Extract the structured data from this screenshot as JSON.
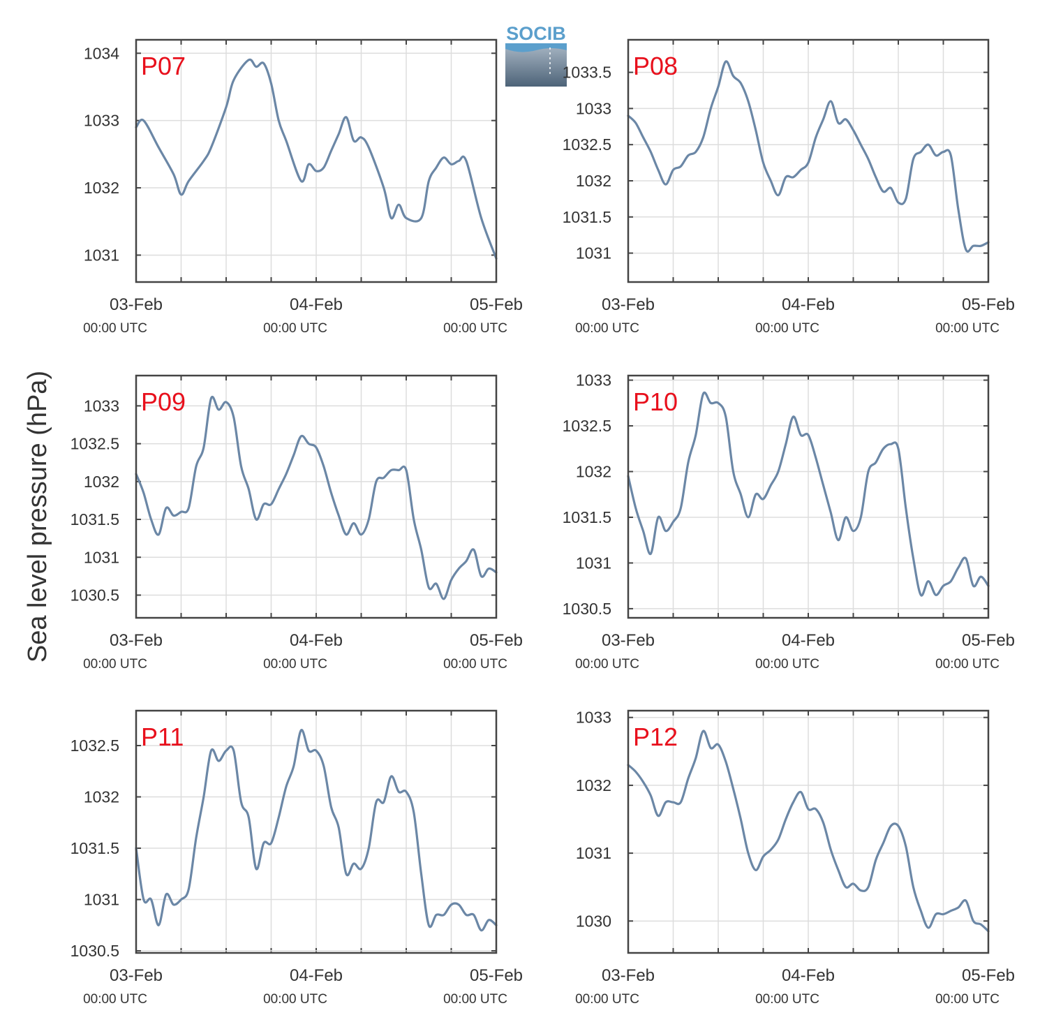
{
  "logo": {
    "text": "SOCIB"
  },
  "figure": {
    "ylabel": "Sea level pressure (hPa)"
  },
  "colors": {
    "line": "#6b87a6",
    "title": "#e8101c",
    "grid": "#dddddd",
    "axis": "#444444",
    "logo_text": "#5b9fcc"
  },
  "chart_data": [
    {
      "type": "line",
      "title": "P07",
      "ylabel": "Sea level pressure (hPa)",
      "x_range_hours": [
        0,
        48
      ],
      "xticks": [
        {
          "date": "03-Feb",
          "time": "00:00 UTC"
        },
        {
          "date": "04-Feb",
          "time": "00:00 UTC"
        },
        {
          "date": "05-Feb",
          "time": "00:00 UTC"
        }
      ],
      "ylim": [
        1030.6,
        1034.2
      ],
      "yticks": [
        1031,
        1032,
        1033,
        1034
      ],
      "grid": true,
      "x_hours": [
        0,
        1,
        3,
        5,
        6,
        7,
        9,
        10,
        12,
        13,
        15,
        16,
        17,
        18,
        19,
        20,
        22,
        23,
        24,
        25,
        26,
        27,
        28,
        29,
        30,
        31,
        33,
        34,
        35,
        36,
        38,
        39,
        40,
        41,
        42,
        43,
        44,
        46,
        48
      ],
      "values": [
        1032.9,
        1033.0,
        1032.6,
        1032.2,
        1031.9,
        1032.1,
        1032.4,
        1032.6,
        1033.2,
        1033.6,
        1033.9,
        1033.8,
        1033.85,
        1033.55,
        1033.0,
        1032.7,
        1032.1,
        1032.35,
        1032.25,
        1032.3,
        1032.55,
        1032.8,
        1033.05,
        1032.7,
        1032.75,
        1032.6,
        1032.0,
        1031.55,
        1031.75,
        1031.55,
        1031.55,
        1032.1,
        1032.3,
        1032.45,
        1032.35,
        1032.4,
        1032.4,
        1031.55,
        1030.95
      ]
    },
    {
      "type": "line",
      "title": "P08",
      "ylabel": "Sea level pressure (hPa)",
      "x_range_hours": [
        0,
        48
      ],
      "xticks": [
        {
          "date": "03-Feb",
          "time": "00:00 UTC"
        },
        {
          "date": "04-Feb",
          "time": "00:00 UTC"
        },
        {
          "date": "05-Feb",
          "time": "00:00 UTC"
        }
      ],
      "ylim": [
        1030.6,
        1033.95
      ],
      "yticks": [
        1031,
        1031.5,
        1032,
        1032.5,
        1033,
        1033.5
      ],
      "grid": true,
      "x_hours": [
        0,
        1,
        2,
        3,
        4,
        5,
        6,
        7,
        8,
        9,
        10,
        11,
        12,
        13,
        14,
        15,
        16,
        17,
        18,
        19,
        20,
        21,
        22,
        23,
        24,
        25,
        26,
        27,
        28,
        29,
        30,
        31,
        32,
        33,
        34,
        35,
        36,
        37,
        38,
        39,
        40,
        41,
        42,
        43,
        44,
        45,
        46,
        47,
        48
      ],
      "values": [
        1032.9,
        1032.8,
        1032.6,
        1032.4,
        1032.15,
        1031.95,
        1032.15,
        1032.2,
        1032.35,
        1032.4,
        1032.6,
        1033.0,
        1033.3,
        1033.65,
        1033.45,
        1033.35,
        1033.1,
        1032.7,
        1032.25,
        1032.0,
        1031.8,
        1032.05,
        1032.05,
        1032.15,
        1032.25,
        1032.6,
        1032.85,
        1033.1,
        1032.8,
        1032.85,
        1032.7,
        1032.5,
        1032.3,
        1032.05,
        1031.85,
        1031.9,
        1031.7,
        1031.75,
        1032.3,
        1032.4,
        1032.5,
        1032.35,
        1032.4,
        1032.35,
        1031.6,
        1031.05,
        1031.1,
        1031.1,
        1031.15
      ]
    },
    {
      "type": "line",
      "title": "P09",
      "ylabel": "Sea level pressure (hPa)",
      "x_range_hours": [
        0,
        48
      ],
      "xticks": [
        {
          "date": "03-Feb",
          "time": "00:00 UTC"
        },
        {
          "date": "04-Feb",
          "time": "00:00 UTC"
        },
        {
          "date": "05-Feb",
          "time": "00:00 UTC"
        }
      ],
      "ylim": [
        1030.2,
        1033.4
      ],
      "yticks": [
        1030.5,
        1031,
        1031.5,
        1032,
        1032.5,
        1033
      ],
      "grid": true,
      "x_hours": [
        0,
        1,
        2,
        3,
        4,
        5,
        6,
        7,
        8,
        9,
        10,
        11,
        12,
        13,
        14,
        15,
        16,
        17,
        18,
        19,
        20,
        21,
        22,
        23,
        24,
        25,
        26,
        27,
        28,
        29,
        30,
        31,
        32,
        33,
        34,
        35,
        36,
        37,
        38,
        39,
        40,
        41,
        42,
        43,
        44,
        45,
        46,
        47,
        48
      ],
      "values": [
        1032.1,
        1031.85,
        1031.5,
        1031.3,
        1031.65,
        1031.55,
        1031.6,
        1031.65,
        1032.2,
        1032.45,
        1033.1,
        1032.95,
        1033.05,
        1032.85,
        1032.2,
        1031.9,
        1031.5,
        1031.7,
        1031.7,
        1031.9,
        1032.1,
        1032.35,
        1032.6,
        1032.5,
        1032.45,
        1032.2,
        1031.85,
        1031.55,
        1031.3,
        1031.45,
        1031.3,
        1031.5,
        1032.0,
        1032.05,
        1032.15,
        1032.15,
        1032.15,
        1031.5,
        1031.1,
        1030.6,
        1030.65,
        1030.45,
        1030.7,
        1030.85,
        1030.95,
        1031.1,
        1030.75,
        1030.85,
        1030.8
      ]
    },
    {
      "type": "line",
      "title": "P10",
      "ylabel": "Sea level pressure (hPa)",
      "x_range_hours": [
        0,
        48
      ],
      "xticks": [
        {
          "date": "03-Feb",
          "time": "00:00 UTC"
        },
        {
          "date": "04-Feb",
          "time": "00:00 UTC"
        },
        {
          "date": "05-Feb",
          "time": "00:00 UTC"
        }
      ],
      "ylim": [
        1030.4,
        1033.05
      ],
      "yticks": [
        1030.5,
        1031,
        1031.5,
        1032,
        1032.5,
        1033
      ],
      "grid": true,
      "x_hours": [
        0,
        1,
        2,
        3,
        4,
        5,
        6,
        7,
        8,
        9,
        10,
        11,
        12,
        13,
        14,
        15,
        16,
        17,
        18,
        19,
        20,
        21,
        22,
        23,
        24,
        25,
        26,
        27,
        28,
        29,
        30,
        31,
        32,
        33,
        34,
        35,
        36,
        37,
        38,
        39,
        40,
        41,
        42,
        43,
        44,
        45,
        46,
        47,
        48
      ],
      "values": [
        1031.95,
        1031.6,
        1031.35,
        1031.1,
        1031.5,
        1031.35,
        1031.45,
        1031.6,
        1032.1,
        1032.4,
        1032.85,
        1032.75,
        1032.75,
        1032.6,
        1032.0,
        1031.75,
        1031.5,
        1031.75,
        1031.7,
        1031.85,
        1032.0,
        1032.3,
        1032.6,
        1032.4,
        1032.4,
        1032.15,
        1031.85,
        1031.55,
        1031.25,
        1031.5,
        1031.35,
        1031.5,
        1032.0,
        1032.1,
        1032.25,
        1032.3,
        1032.25,
        1031.6,
        1031.05,
        1030.65,
        1030.8,
        1030.65,
        1030.75,
        1030.8,
        1030.95,
        1031.05,
        1030.75,
        1030.85,
        1030.75
      ]
    },
    {
      "type": "line",
      "title": "P11",
      "ylabel": "Sea level pressure (hPa)",
      "x_range_hours": [
        0,
        48
      ],
      "xticks": [
        {
          "date": "03-Feb",
          "time": "00:00 UTC"
        },
        {
          "date": "04-Feb",
          "time": "00:00 UTC"
        },
        {
          "date": "05-Feb",
          "time": "00:00 UTC"
        }
      ],
      "ylim": [
        1030.48,
        1032.84
      ],
      "yticks": [
        1030.5,
        1031,
        1031.5,
        1032,
        1032.5
      ],
      "grid": true,
      "x_hours": [
        0,
        1,
        2,
        3,
        4,
        5,
        6,
        7,
        8,
        9,
        10,
        11,
        12,
        13,
        14,
        15,
        16,
        17,
        18,
        19,
        20,
        21,
        22,
        23,
        24,
        25,
        26,
        27,
        28,
        29,
        30,
        31,
        32,
        33,
        34,
        35,
        36,
        37,
        38,
        39,
        40,
        41,
        42,
        43,
        44,
        45,
        46,
        47,
        48
      ],
      "values": [
        1031.5,
        1031.0,
        1031.0,
        1030.75,
        1031.05,
        1030.95,
        1031.0,
        1031.1,
        1031.6,
        1032.0,
        1032.45,
        1032.35,
        1032.45,
        1032.45,
        1031.95,
        1031.8,
        1031.3,
        1031.55,
        1031.55,
        1031.8,
        1032.1,
        1032.3,
        1032.65,
        1032.45,
        1032.45,
        1032.3,
        1031.9,
        1031.7,
        1031.25,
        1031.35,
        1031.3,
        1031.5,
        1031.95,
        1031.95,
        1032.2,
        1032.05,
        1032.05,
        1031.85,
        1031.25,
        1030.75,
        1030.85,
        1030.85,
        1030.95,
        1030.95,
        1030.85,
        1030.85,
        1030.7,
        1030.8,
        1030.75
      ]
    },
    {
      "type": "line",
      "title": "P12",
      "ylabel": "Sea level pressure (hPa)",
      "x_range_hours": [
        0,
        48
      ],
      "xticks": [
        {
          "date": "03-Feb",
          "time": "00:00 UTC"
        },
        {
          "date": "04-Feb",
          "time": "00:00 UTC"
        },
        {
          "date": "05-Feb",
          "time": "00:00 UTC"
        }
      ],
      "ylim": [
        1029.53,
        1033.1
      ],
      "yticks": [
        1030,
        1031,
        1032,
        1033
      ],
      "grid": true,
      "x_hours": [
        0,
        1,
        2,
        3,
        4,
        5,
        6,
        7,
        8,
        9,
        10,
        11,
        12,
        13,
        14,
        15,
        16,
        17,
        18,
        19,
        20,
        21,
        22,
        23,
        24,
        25,
        26,
        27,
        28,
        29,
        30,
        31,
        32,
        33,
        34,
        35,
        36,
        37,
        38,
        39,
        40,
        41,
        42,
        43,
        44,
        45,
        46,
        47,
        48
      ],
      "values": [
        1032.3,
        1032.2,
        1032.05,
        1031.85,
        1031.55,
        1031.75,
        1031.75,
        1031.75,
        1032.1,
        1032.4,
        1032.8,
        1032.55,
        1032.6,
        1032.35,
        1031.95,
        1031.5,
        1031.0,
        1030.75,
        1030.95,
        1031.05,
        1031.2,
        1031.5,
        1031.75,
        1031.9,
        1031.65,
        1031.65,
        1031.45,
        1031.05,
        1030.75,
        1030.5,
        1030.55,
        1030.45,
        1030.5,
        1030.9,
        1031.15,
        1031.4,
        1031.4,
        1031.1,
        1030.5,
        1030.15,
        1029.9,
        1030.1,
        1030.1,
        1030.15,
        1030.2,
        1030.3,
        1030.0,
        1029.95,
        1029.85
      ]
    }
  ]
}
